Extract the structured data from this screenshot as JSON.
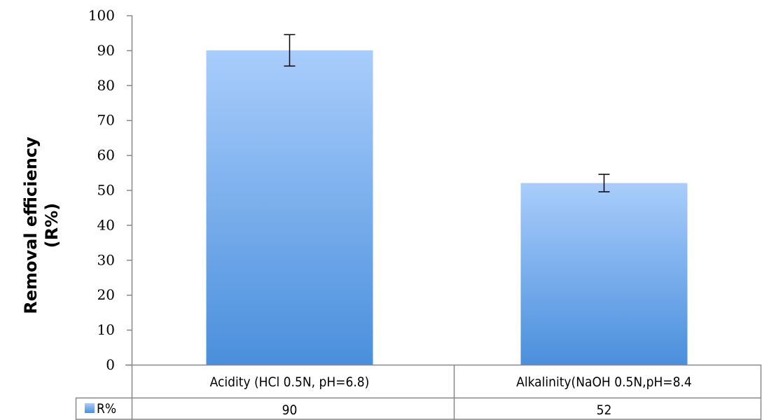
{
  "chart_data": {
    "type": "bar",
    "categories": [
      "Acidity (HCl 0.5N, pH=6.8)",
      "Alkalinity(NaOH 0.5N,pH=8.4"
    ],
    "series": [
      {
        "name": "R%",
        "values": [
          90,
          52
        ],
        "error": [
          4.5,
          2.5
        ],
        "color_top": "#a9cdfc",
        "color_bottom": "#4a8fdc"
      }
    ],
    "title": "",
    "xlabel": "",
    "ylabel_lines": [
      "Removal efficiency",
      "(R%)"
    ],
    "ylim": [
      0,
      100
    ],
    "yticks": [
      0,
      10,
      20,
      30,
      40,
      50,
      60,
      70,
      80,
      90,
      100
    ],
    "grid": false,
    "legend": "data-table",
    "data_table": {
      "legend_label": "R%",
      "cells": [
        "90",
        "52"
      ]
    }
  }
}
